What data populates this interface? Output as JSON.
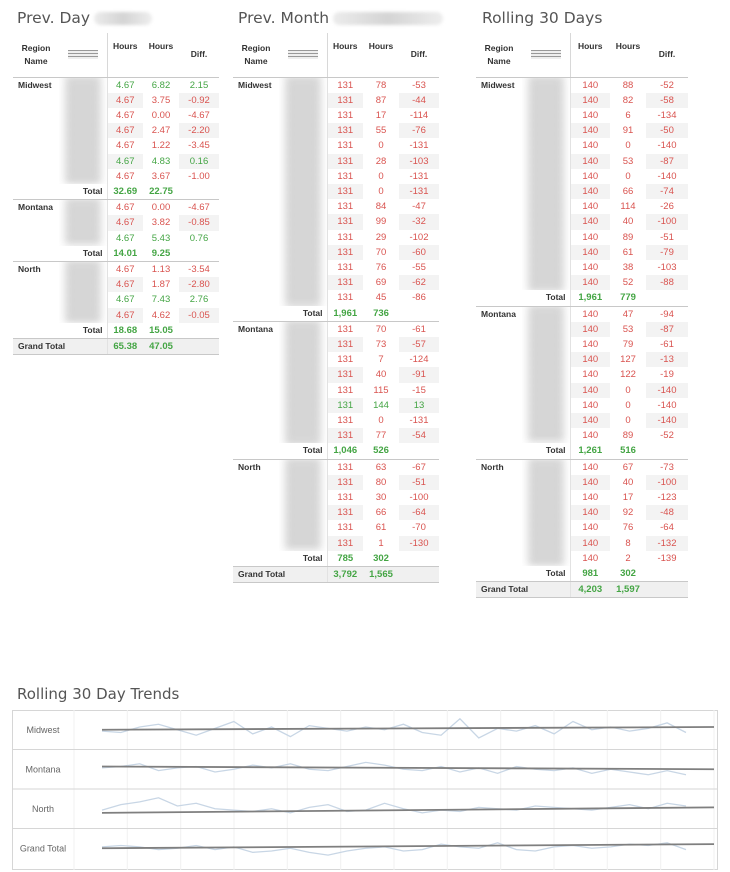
{
  "colors": {
    "negative": "#d9534f",
    "positive": "#44a544",
    "trend_line": "#7f7f7f",
    "series_line": "#c8d6e5"
  },
  "panels": [
    {
      "title": "Prev. Day",
      "title_redacted": true,
      "headers": [
        "Region Name",
        "Hours",
        "Hours",
        "Diff."
      ],
      "groups": [
        {
          "region": "Midwest",
          "rows": [
            [
              "4.67",
              "6.82",
              "2.15"
            ],
            [
              "4.67",
              "3.75",
              "-0.92"
            ],
            [
              "4.67",
              "0.00",
              "-4.67"
            ],
            [
              "4.67",
              "2.47",
              "-2.20"
            ],
            [
              "4.67",
              "1.22",
              "-3.45"
            ],
            [
              "4.67",
              "4.83",
              "0.16"
            ],
            [
              "4.67",
              "3.67",
              "-1.00"
            ]
          ],
          "total": [
            "32.69",
            "22.75",
            ""
          ]
        },
        {
          "region": "Montana",
          "rows": [
            [
              "4.67",
              "0.00",
              "-4.67"
            ],
            [
              "4.67",
              "3.82",
              "-0.85"
            ],
            [
              "4.67",
              "5.43",
              "0.76"
            ]
          ],
          "total": [
            "14.01",
            "9.25",
            ""
          ]
        },
        {
          "region": "North",
          "rows": [
            [
              "4.67",
              "1.13",
              "-3.54"
            ],
            [
              "4.67",
              "1.87",
              "-2.80"
            ],
            [
              "4.67",
              "7.43",
              "2.76"
            ],
            [
              "4.67",
              "4.62",
              "-0.05"
            ]
          ],
          "total": [
            "18.68",
            "15.05",
            ""
          ]
        }
      ],
      "total_label": "Total",
      "grand_total_label": "Grand Total",
      "grand_total": [
        "65.38",
        "47.05",
        ""
      ]
    },
    {
      "title": "Prev. Month",
      "title_redacted": true,
      "headers": [
        "Region Name",
        "Hours",
        "Hours",
        "Diff."
      ],
      "groups": [
        {
          "region": "Midwest",
          "rows": [
            [
              "131",
              "78",
              "-53"
            ],
            [
              "131",
              "87",
              "-44"
            ],
            [
              "131",
              "17",
              "-114"
            ],
            [
              "131",
              "55",
              "-76"
            ],
            [
              "131",
              "0",
              "-131"
            ],
            [
              "131",
              "28",
              "-103"
            ],
            [
              "131",
              "0",
              "-131"
            ],
            [
              "131",
              "0",
              "-131"
            ],
            [
              "131",
              "84",
              "-47"
            ],
            [
              "131",
              "99",
              "-32"
            ],
            [
              "131",
              "29",
              "-102"
            ],
            [
              "131",
              "70",
              "-60"
            ],
            [
              "131",
              "76",
              "-55"
            ],
            [
              "131",
              "69",
              "-62"
            ],
            [
              "131",
              "45",
              "-86"
            ]
          ],
          "total": [
            "1,961",
            "736",
            ""
          ]
        },
        {
          "region": "Montana",
          "rows": [
            [
              "131",
              "70",
              "-61"
            ],
            [
              "131",
              "73",
              "-57"
            ],
            [
              "131",
              "7",
              "-124"
            ],
            [
              "131",
              "40",
              "-91"
            ],
            [
              "131",
              "115",
              "-15"
            ],
            [
              "131",
              "144",
              "13"
            ],
            [
              "131",
              "0",
              "-131"
            ],
            [
              "131",
              "77",
              "-54"
            ]
          ],
          "total": [
            "1,046",
            "526",
            ""
          ]
        },
        {
          "region": "North",
          "rows": [
            [
              "131",
              "63",
              "-67"
            ],
            [
              "131",
              "80",
              "-51"
            ],
            [
              "131",
              "30",
              "-100"
            ],
            [
              "131",
              "66",
              "-64"
            ],
            [
              "131",
              "61",
              "-70"
            ],
            [
              "131",
              "1",
              "-130"
            ]
          ],
          "total": [
            "785",
            "302",
            ""
          ]
        }
      ],
      "total_label": "Total",
      "grand_total_label": "Grand Total",
      "grand_total": [
        "3,792",
        "1,565",
        ""
      ]
    },
    {
      "title": "Rolling 30 Days",
      "title_redacted": false,
      "headers": [
        "Region Name",
        "Hours",
        "Hours",
        "Diff."
      ],
      "groups": [
        {
          "region": "Midwest",
          "rows": [
            [
              "140",
              "88",
              "-52"
            ],
            [
              "140",
              "82",
              "-58"
            ],
            [
              "140",
              "6",
              "-134"
            ],
            [
              "140",
              "91",
              "-50"
            ],
            [
              "140",
              "0",
              "-140"
            ],
            [
              "140",
              "53",
              "-87"
            ],
            [
              "140",
              "0",
              "-140"
            ],
            [
              "140",
              "66",
              "-74"
            ],
            [
              "140",
              "114",
              "-26"
            ],
            [
              "140",
              "40",
              "-100"
            ],
            [
              "140",
              "89",
              "-51"
            ],
            [
              "140",
              "61",
              "-79"
            ],
            [
              "140",
              "38",
              "-103"
            ],
            [
              "140",
              "52",
              "-88"
            ]
          ],
          "total": [
            "1,961",
            "779",
            ""
          ]
        },
        {
          "region": "Montana",
          "rows": [
            [
              "140",
              "47",
              "-94"
            ],
            [
              "140",
              "53",
              "-87"
            ],
            [
              "140",
              "79",
              "-61"
            ],
            [
              "140",
              "127",
              "-13"
            ],
            [
              "140",
              "122",
              "-19"
            ],
            [
              "140",
              "0",
              "-140"
            ],
            [
              "140",
              "0",
              "-140"
            ],
            [
              "140",
              "0",
              "-140"
            ],
            [
              "140",
              "89",
              "-52"
            ]
          ],
          "total": [
            "1,261",
            "516",
            ""
          ]
        },
        {
          "region": "North",
          "rows": [
            [
              "140",
              "67",
              "-73"
            ],
            [
              "140",
              "40",
              "-100"
            ],
            [
              "140",
              "17",
              "-123"
            ],
            [
              "140",
              "92",
              "-48"
            ],
            [
              "140",
              "76",
              "-64"
            ],
            [
              "140",
              "8",
              "-132"
            ],
            [
              "140",
              "2",
              "-139"
            ]
          ],
          "total": [
            "981",
            "302",
            ""
          ]
        }
      ],
      "total_label": "Total",
      "grand_total_label": "Grand Total",
      "grand_total": [
        "4,203",
        "1,597",
        ""
      ]
    }
  ],
  "trends": {
    "title": "Rolling 30 Day Trends"
  },
  "chart_data": {
    "type": "line",
    "title": "Rolling 30 Day Trends",
    "grid": true,
    "rows": [
      "Midwest",
      "Montana",
      "North",
      "Grand Total"
    ],
    "series": [
      {
        "name": "Midwest",
        "values": [
          0.45,
          0.4,
          0.6,
          0.7,
          0.5,
          0.3,
          0.55,
          0.8,
          0.35,
          0.6,
          0.25,
          0.65,
          0.55,
          0.45,
          0.6,
          0.5,
          0.7,
          0.4,
          0.3,
          0.9,
          0.2,
          0.55,
          0.45,
          0.65,
          0.35,
          0.8,
          0.5,
          0.6,
          0.45,
          0.55,
          0.75,
          0.4
        ],
        "trend": [
          0.5,
          0.6
        ]
      },
      {
        "name": "Montana",
        "values": [
          0.55,
          0.6,
          0.7,
          0.45,
          0.55,
          0.6,
          0.4,
          0.5,
          0.65,
          0.55,
          0.7,
          0.5,
          0.45,
          0.6,
          0.75,
          0.65,
          0.5,
          0.45,
          0.6,
          0.4,
          0.55,
          0.35,
          0.6,
          0.5,
          0.45,
          0.55,
          0.35,
          0.5,
          0.4,
          0.3,
          0.45,
          0.3
        ],
        "trend": [
          0.6,
          0.5
        ]
      },
      {
        "name": "North",
        "values": [
          0.45,
          0.65,
          0.75,
          0.9,
          0.6,
          0.7,
          0.5,
          0.45,
          0.4,
          0.5,
          0.35,
          0.55,
          0.65,
          0.4,
          0.45,
          0.7,
          0.5,
          0.35,
          0.45,
          0.4,
          0.55,
          0.5,
          0.45,
          0.6,
          0.55,
          0.5,
          0.45,
          0.55,
          0.65,
          0.5,
          0.7,
          0.6
        ],
        "trend": [
          0.35,
          0.55
        ]
      },
      {
        "name": "Grand Total",
        "values": [
          0.55,
          0.6,
          0.55,
          0.45,
          0.5,
          0.6,
          0.45,
          0.55,
          0.35,
          0.4,
          0.5,
          0.35,
          0.25,
          0.4,
          0.5,
          0.55,
          0.4,
          0.45,
          0.65,
          0.55,
          0.5,
          0.7,
          0.45,
          0.4,
          0.55,
          0.6,
          0.5,
          0.55,
          0.65,
          0.6,
          0.7,
          0.45
        ],
        "trend": [
          0.5,
          0.65
        ]
      }
    ]
  }
}
